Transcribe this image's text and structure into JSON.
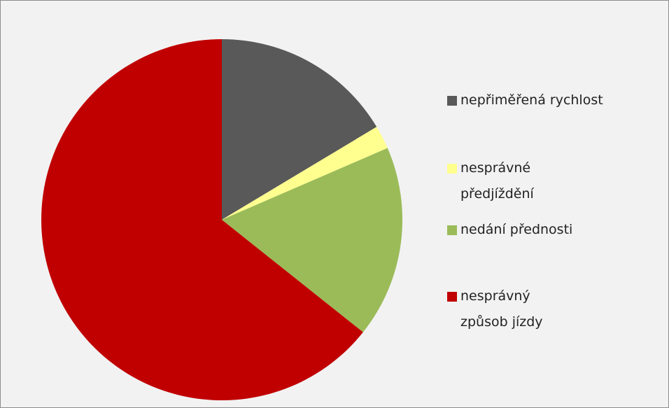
{
  "chart_data": {
    "type": "pie",
    "categories": [
      "nepřiměřená rychlost",
      "nesprávné předjíždění",
      "nedání přednosti",
      "nesprávný způsob jízdy"
    ],
    "values": [
      16.4,
      2.1,
      17.2,
      64.3
    ],
    "colors": [
      "#595959",
      "#ffff8f",
      "#9bbb59",
      "#c00000"
    ],
    "legend": "right"
  }
}
